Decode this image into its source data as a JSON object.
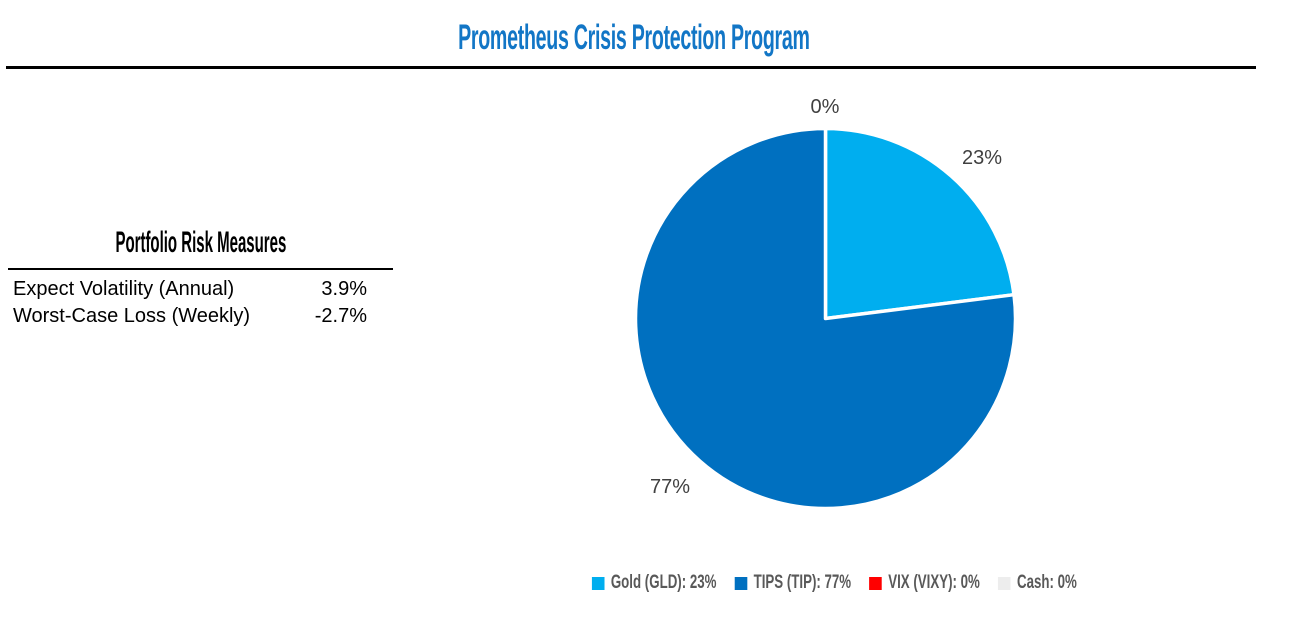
{
  "header": {
    "title": "Prometheus Crisis Protection Program"
  },
  "colors": {
    "title": "#1276C6",
    "divider": "#000000",
    "pie_label": "#404040",
    "legend_text": "#595959",
    "pie_stroke": "#FFFFFF"
  },
  "risk_table": {
    "title": "Portfolio Risk Measures",
    "rows": [
      {
        "label": "Expect Volatility (Annual)",
        "value": "3.9%"
      },
      {
        "label": "Worst-Case Loss (Weekly)",
        "value": "-2.7%"
      }
    ]
  },
  "chart_data": {
    "type": "pie",
    "title": "Prometheus Crisis Protection Program",
    "start_angle_deg": 0,
    "direction": "clockwise",
    "legend_position": "bottom",
    "slices": [
      {
        "name": "Gold (GLD)",
        "value": 23,
        "color": "#00AEEF",
        "legend_label": "Gold (GLD): 23%",
        "pie_label": "23%"
      },
      {
        "name": "TIPS (TIP)",
        "value": 77,
        "color": "#0070C0",
        "legend_label": "TIPS (TIP): 77%",
        "pie_label": "77%"
      },
      {
        "name": "VIX (VIXY)",
        "value": 0,
        "color": "#FF0000",
        "legend_label": "VIX (VIXY): 0%",
        "pie_label": "0%"
      },
      {
        "name": "Cash",
        "value": 0,
        "color": "#EDEDED",
        "legend_label": "Cash: 0%",
        "pie_label": ""
      }
    ]
  }
}
